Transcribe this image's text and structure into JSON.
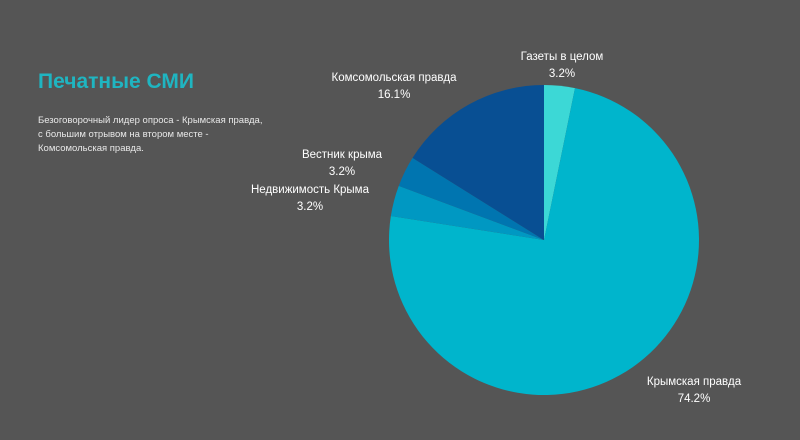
{
  "page": {
    "title": "Печатные СМИ",
    "description": [
      "Безоговорочный лидер опроса - Крымская правда,",
      "с большим отрывом на втором месте -",
      "Комсомольская правда."
    ]
  },
  "chart_data": {
    "type": "pie",
    "slices": [
      {
        "label": "Газеты в целом",
        "value": 3.2,
        "display": "3.2%",
        "color": "#3cd8d6"
      },
      {
        "label": "Крымская правда",
        "value": 74.2,
        "display": "74.2%",
        "color": "#00b5cc"
      },
      {
        "label": "Недвижимость Крыма",
        "value": 3.2,
        "display": "3.2%",
        "color": "#0098c2"
      },
      {
        "label": "Вестник крыма",
        "value": 3.2,
        "display": "3.2%",
        "color": "#0075b0"
      },
      {
        "label": "Комсомольская правда",
        "value": 16.1,
        "display": "16.1%",
        "color": "#084f93"
      }
    ]
  }
}
